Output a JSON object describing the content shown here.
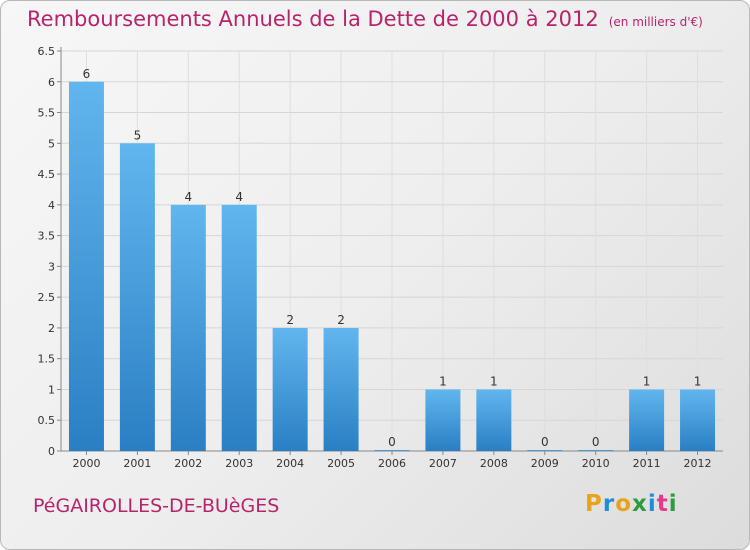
{
  "header": {
    "title": "Remboursements Annuels de la Dette de 2000 à 2012",
    "unit": "(en milliers d'€)"
  },
  "footer": {
    "commune": "PéGAIROLLES-DE-BUèGES",
    "logo": "Proxiti"
  },
  "colors": {
    "title": "#b8246c",
    "bar": "#3d95d8",
    "bar_light": "#5eb3ec",
    "logo_letters": [
      "#e8a31c",
      "#1c8fd6",
      "#e8a31c",
      "#2e9b3e",
      "#1c8fd6",
      "#e83a8c",
      "#2e9b3e"
    ]
  },
  "chart_data": {
    "type": "bar",
    "categories": [
      "2000",
      "2001",
      "2002",
      "2003",
      "2004",
      "2005",
      "2006",
      "2007",
      "2008",
      "2009",
      "2010",
      "2011",
      "2012"
    ],
    "values": [
      6,
      5,
      4,
      4,
      2,
      2,
      0,
      1,
      1,
      0,
      0,
      1,
      1
    ],
    "y_ticks": [
      "0",
      "0.5",
      "1",
      "1.5",
      "2",
      "2.5",
      "3",
      "3.5",
      "4",
      "4.5",
      "5",
      "5.5",
      "6",
      "6.5"
    ],
    "ylim": [
      0,
      6.5
    ],
    "grid": true,
    "xlabel": "",
    "ylabel": ""
  }
}
